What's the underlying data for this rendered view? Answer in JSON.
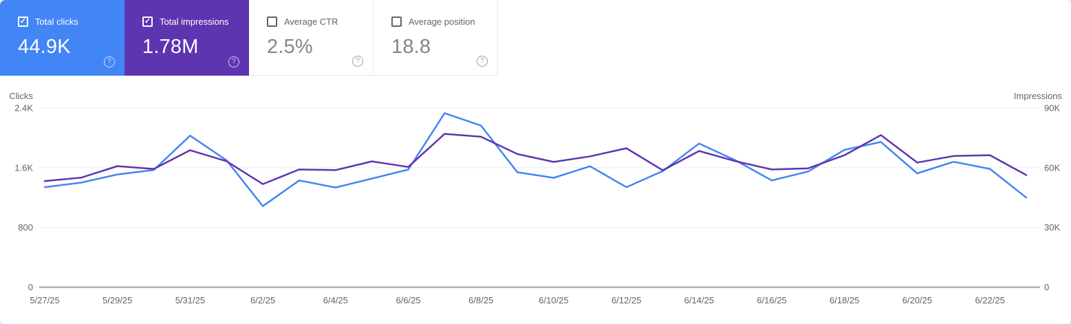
{
  "icons": {
    "help": "?",
    "check": "✓"
  },
  "colors": {
    "clicks_accent": "#4285f4",
    "impressions_accent": "#5e35b1",
    "grid_line": "#ececec",
    "axis_line": "#9aa0a6",
    "tick_text": "#5f6368",
    "value_text_plain": "#80868b"
  },
  "cards": [
    {
      "id": "total-clicks",
      "label": "Total clicks",
      "value": "44.9K",
      "checked": true,
      "bg": "#4285f4"
    },
    {
      "id": "total-impressions",
      "label": "Total impressions",
      "value": "1.78M",
      "checked": true,
      "bg": "#5e35b1"
    },
    {
      "id": "average-ctr",
      "label": "Average CTR",
      "value": "2.5%",
      "checked": false,
      "bg": null
    },
    {
      "id": "average-position",
      "label": "Average position",
      "value": "18.8",
      "checked": false,
      "bg": null
    }
  ],
  "chart_data": {
    "type": "line",
    "x": [
      "5/27/25",
      "5/28/25",
      "5/29/25",
      "5/30/25",
      "5/31/25",
      "6/1/25",
      "6/2/25",
      "6/3/25",
      "6/4/25",
      "6/5/25",
      "6/6/25",
      "6/7/25",
      "6/8/25",
      "6/9/25",
      "6/10/25",
      "6/11/25",
      "6/12/25",
      "6/13/25",
      "6/14/25",
      "6/15/25",
      "6/16/25",
      "6/17/25",
      "6/18/25",
      "6/19/25",
      "6/20/25",
      "6/21/25",
      "6/22/25",
      "6/23/25"
    ],
    "x_tick_labels": [
      "5/27/25",
      "5/29/25",
      "5/31/25",
      "6/2/25",
      "6/4/25",
      "6/6/25",
      "6/8/25",
      "6/10/25",
      "6/12/25",
      "6/14/25",
      "6/16/25",
      "6/18/25",
      "6/20/25",
      "6/22/25"
    ],
    "series": [
      {
        "name": "Clicks",
        "axis": "left",
        "color": "#4285f4",
        "values": [
          1340,
          1400,
          1510,
          1570,
          2030,
          1700,
          1085,
          1430,
          1335,
          1455,
          1575,
          2330,
          2165,
          1540,
          1465,
          1620,
          1340,
          1555,
          1925,
          1700,
          1430,
          1550,
          1840,
          1945,
          1525,
          1680,
          1585,
          1200
        ]
      },
      {
        "name": "Impressions",
        "axis": "right",
        "color": "#5e35b1",
        "values": [
          53300,
          55000,
          60800,
          59400,
          68800,
          63300,
          51800,
          59100,
          58800,
          63200,
          60400,
          77000,
          75600,
          66900,
          62900,
          65700,
          69800,
          58700,
          68400,
          63300,
          59100,
          59700,
          66300,
          76400,
          62600,
          65900,
          66300,
          56300
        ]
      }
    ],
    "left_axis": {
      "title": "Clicks",
      "ticks": [
        "2.4K",
        "1.6K",
        "800",
        "0"
      ],
      "tick_values": [
        2400,
        1600,
        800,
        0
      ],
      "range": [
        0,
        2400
      ]
    },
    "right_axis": {
      "title": "Impressions",
      "ticks": [
        "90K",
        "60K",
        "30K",
        "0"
      ],
      "tick_values": [
        90000,
        60000,
        30000,
        0
      ],
      "range": [
        0,
        90000
      ]
    },
    "grid": "horizontal",
    "legend": "none"
  }
}
